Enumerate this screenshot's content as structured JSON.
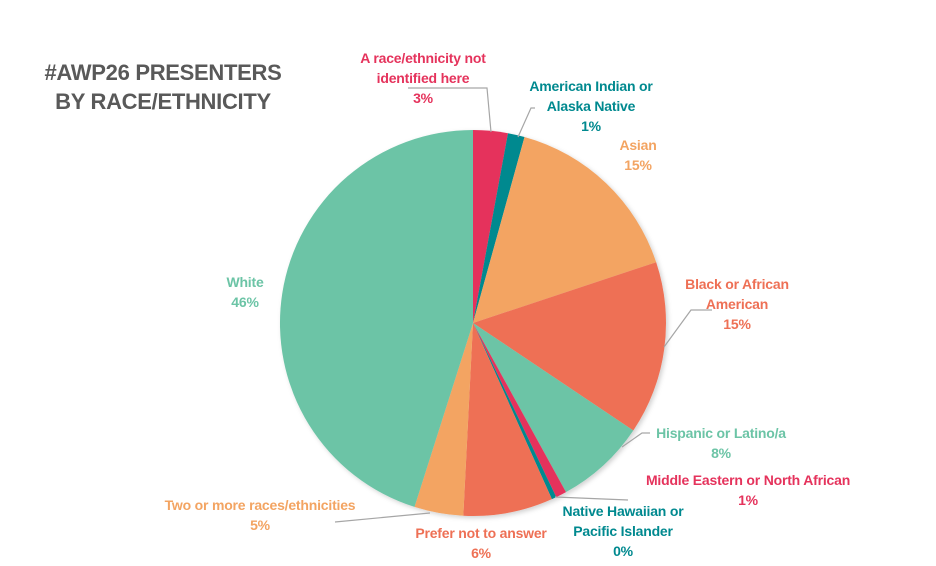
{
  "title": {
    "line1": "#AWP26 PRESENTERS",
    "line2": "BY RACE/ETHNICITY"
  },
  "colors": {
    "green": "#6CC4A6",
    "red": "#E5335C",
    "teal": "#00898F",
    "orange": "#F3A462",
    "coral": "#EE7055",
    "title": "#595959",
    "leader": "#A6A6A6"
  },
  "chart_data": {
    "type": "pie",
    "title": "#AWP26 PRESENTERS BY RACE/ETHNICITY",
    "start_angle": "12 o'clock, clockwise",
    "legend": "none (data labels with category name and percentage)",
    "categories": [
      "A race/ethnicity not identified here",
      "American Indian or Alaska Native",
      "Asian",
      "Black or African American",
      "Hispanic or Latino/a",
      "Middle Eastern or North African",
      "Native Hawaiian or Pacific Islander",
      "Prefer not to answer",
      "Two or more races/ethnicities",
      "White"
    ],
    "values": [
      3,
      1,
      15,
      15,
      8,
      1,
      0,
      6,
      5,
      46
    ],
    "value_labels": [
      "3%",
      "1%",
      "15%",
      "15%",
      "8%",
      "1%",
      "0%",
      "6%",
      "5%",
      "46%"
    ],
    "slice_fractions_estimated": [
      0.029,
      0.014,
      0.156,
      0.145,
      0.076,
      0.009,
      0.004,
      0.075,
      0.041,
      0.451
    ],
    "slice_colors": [
      "#E5335C",
      "#00898F",
      "#F3A462",
      "#EE7055",
      "#6CC4A6",
      "#E5335C",
      "#00898F",
      "#EE7055",
      "#F3A462",
      "#6CC4A6"
    ]
  },
  "labels": [
    {
      "l1": "A race/ethnicity not",
      "l2": "identified here",
      "pct": "3%"
    },
    {
      "l1": "American Indian or",
      "l2": "Alaska Native",
      "pct": "1%"
    },
    {
      "l1": "Asian",
      "pct": "15%"
    },
    {
      "l1": "Black or African",
      "l2": "American",
      "pct": "15%"
    },
    {
      "l1": "Hispanic or Latino/a",
      "pct": "8%"
    },
    {
      "l1": "Middle Eastern or North African",
      "pct": "1%"
    },
    {
      "l1": "Native Hawaiian or",
      "l2": "Pacific Islander",
      "pct": "0%"
    },
    {
      "l1": "Prefer not to answer",
      "pct": "6%"
    },
    {
      "l1": "Two or more races/ethnicities",
      "pct": "5%"
    },
    {
      "l1": "White",
      "pct": "46%"
    }
  ]
}
